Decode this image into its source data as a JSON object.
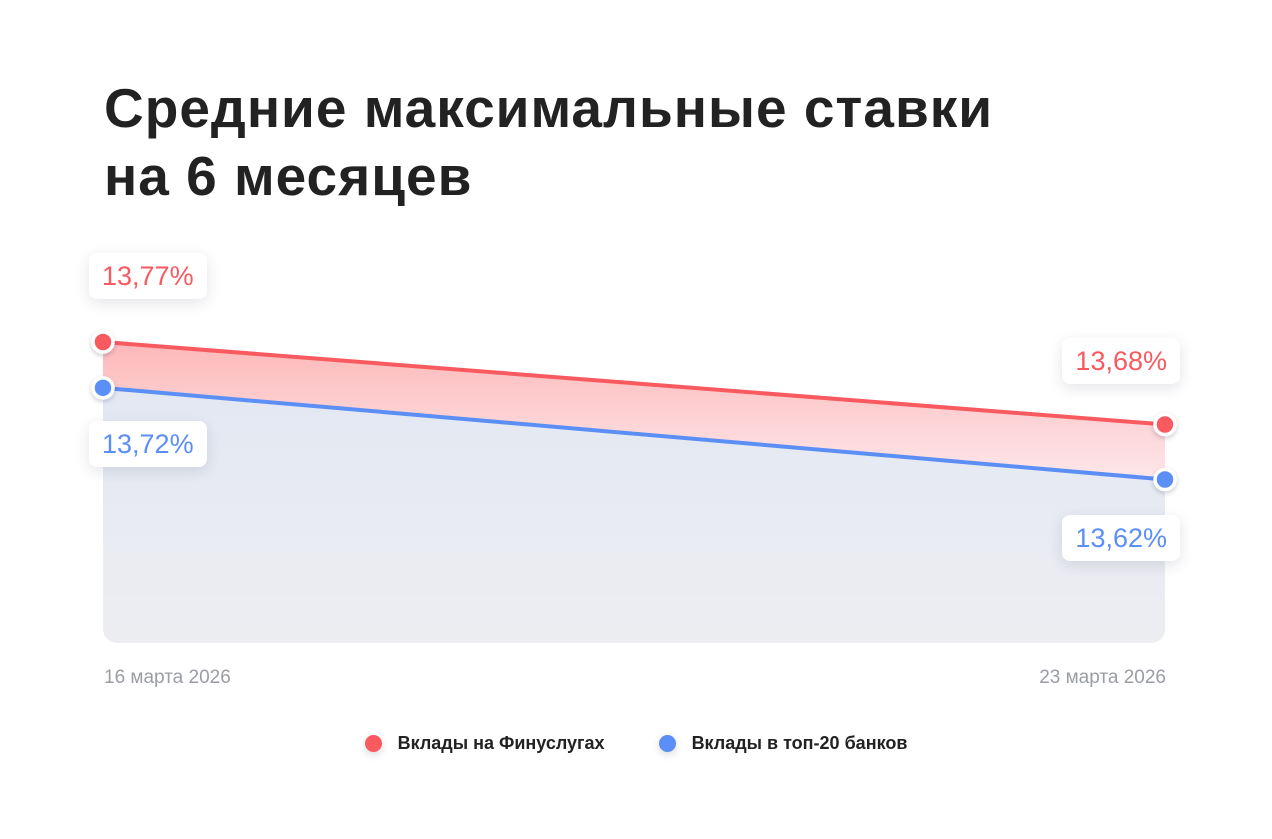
{
  "chart_data": {
    "type": "line",
    "title_lines": [
      "Средние максимальные ставки",
      "на 6 месяцев"
    ],
    "x": [
      "16 марта 2026",
      "23 марта 2026"
    ],
    "series": [
      {
        "name": "Вклады на Финуслугах",
        "values": [
          13.77,
          13.68
        ],
        "value_labels": [
          "13,77%",
          "13,68%"
        ],
        "color": "#f85a5f"
      },
      {
        "name": "Вклады в топ-20 банков",
        "values": [
          13.72,
          13.62
        ],
        "value_labels": [
          "13,72%",
          "13,62%"
        ],
        "color": "#5b8ff5"
      }
    ],
    "ylim": [
      13.53,
      13.8
    ],
    "grid": false,
    "legend": "bottom-center"
  }
}
